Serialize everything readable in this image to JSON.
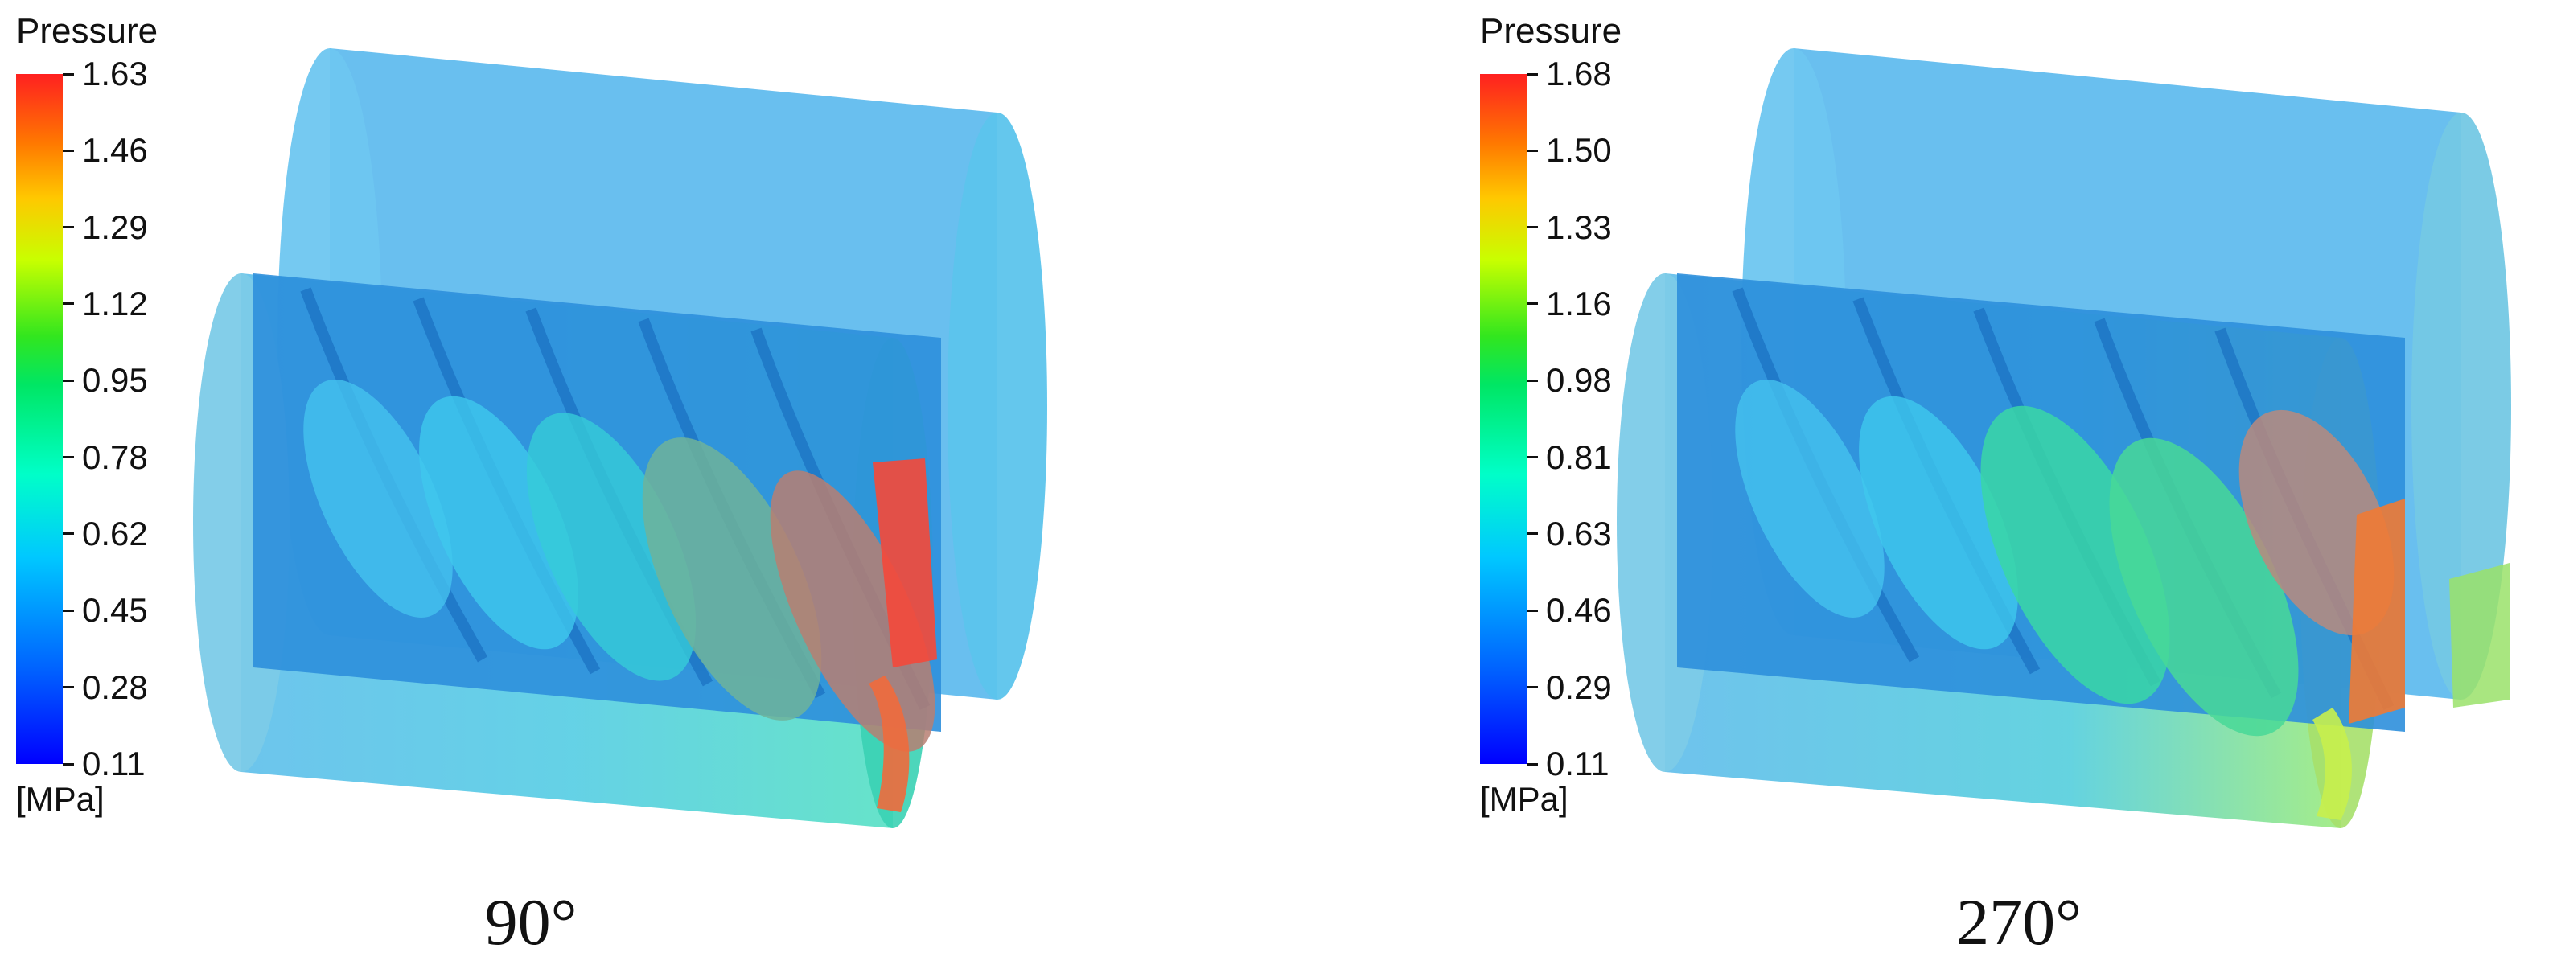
{
  "panels": [
    {
      "legend_title": "Pressure",
      "unit": "[MPa]",
      "ticks": [
        "1.63",
        "1.46",
        "1.29",
        "1.12",
        "0.95",
        "0.78",
        "0.62",
        "0.45",
        "0.28",
        "0.11"
      ],
      "angle": "90°"
    },
    {
      "legend_title": "Pressure",
      "unit": "[MPa]",
      "ticks": [
        "1.68",
        "1.50",
        "1.33",
        "1.16",
        "0.98",
        "0.81",
        "0.63",
        "0.46",
        "0.29",
        "0.11"
      ],
      "angle": "270°"
    }
  ]
}
